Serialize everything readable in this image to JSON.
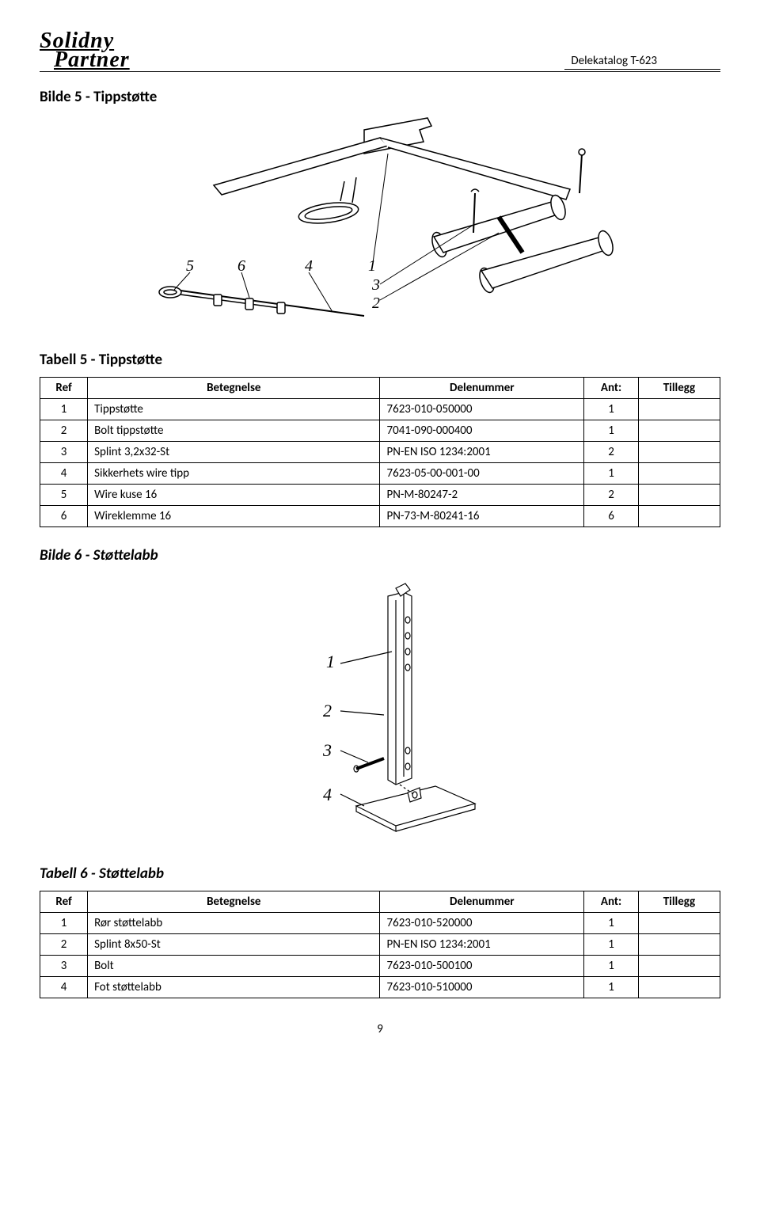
{
  "header": {
    "logo_line1": "Solidny",
    "logo_line2": "Partner",
    "doc_title": "Delekatalog T-623"
  },
  "section1": {
    "image_title": "Bilde 5 - Tippstøtte",
    "table_title": "Tabell 5 - Tippstøtte"
  },
  "section2": {
    "image_title": "Bilde  6 - Støttelabb",
    "table_title": "Tabell 6 - Støttelabb"
  },
  "table_headers": {
    "ref": "Ref",
    "desc": "Betegnelse",
    "part": "Delenummer",
    "qty": "Ant:",
    "ext": "Tillegg"
  },
  "table1_rows": [
    {
      "ref": "1",
      "desc": "Tippstøtte",
      "part": "7623-010-050000",
      "qty": "1",
      "ext": ""
    },
    {
      "ref": "2",
      "desc": "Bolt tippstøtte",
      "part": "7041-090-000400",
      "qty": "1",
      "ext": ""
    },
    {
      "ref": "3",
      "desc": "Splint 3,2x32-St",
      "part": "PN-EN ISO 1234:2001",
      "qty": "2",
      "ext": ""
    },
    {
      "ref": "4",
      "desc": "Sikkerhets wire tipp",
      "part": "7623-05-00-001-00",
      "qty": "1",
      "ext": ""
    },
    {
      "ref": "5",
      "desc": "Wire kuse 16",
      "part": "PN-M-80247-2",
      "qty": "2",
      "ext": ""
    },
    {
      "ref": "6",
      "desc": "Wireklemme 16",
      "part": "PN-73-M-80241-16",
      "qty": "6",
      "ext": ""
    }
  ],
  "table2_rows": [
    {
      "ref": "1",
      "desc": "Rør støttelabb",
      "part": "7623-010-520000",
      "qty": "1",
      "ext": ""
    },
    {
      "ref": "2",
      "desc": "Splint 8x50-St",
      "part": "PN-EN ISO 1234:2001",
      "qty": "1",
      "ext": ""
    },
    {
      "ref": "3",
      "desc": "Bolt",
      "part": "7623-010-500100",
      "qty": "1",
      "ext": ""
    },
    {
      "ref": "4",
      "desc": "Fot støttelabb",
      "part": "7623-010-510000",
      "qty": "1",
      "ext": ""
    }
  ],
  "figure1_callouts": [
    "5",
    "6",
    "4",
    "1",
    "3",
    "2"
  ],
  "figure2_callouts": [
    "1",
    "2",
    "3",
    "4"
  ],
  "page_number": "9",
  "colors": {
    "text": "#000000",
    "stroke": "#000000",
    "background": "#ffffff"
  }
}
